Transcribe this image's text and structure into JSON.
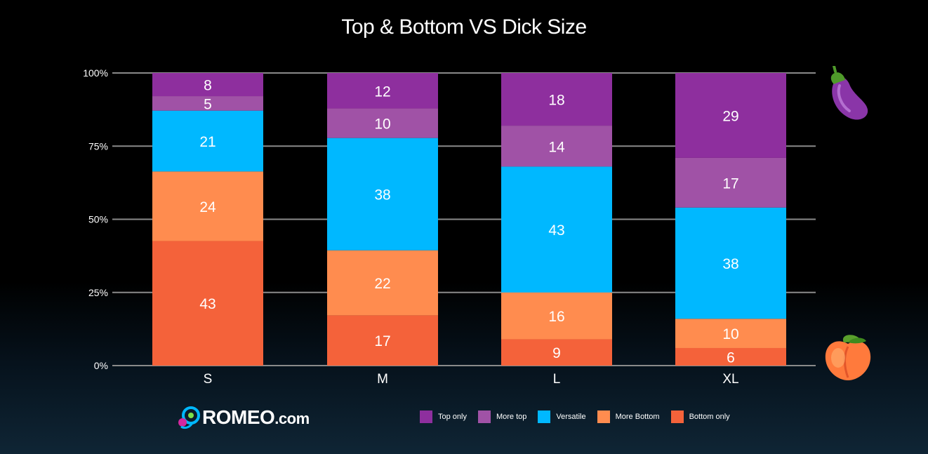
{
  "title": "Top & Bottom VS Dick Size",
  "logo": {
    "brand": "ROMEO",
    "suffix": ".com"
  },
  "colors": {
    "top_only": "#8e2f9e",
    "more_top": "#a052a6",
    "versatile": "#00b8ff",
    "more_bottom": "#ff8c4f",
    "bottom_only": "#f4623a"
  },
  "chart_data": {
    "type": "bar",
    "stacked": true,
    "normalized": "percent",
    "title": "Top & Bottom VS Dick Size",
    "categories": [
      "S",
      "M",
      "L",
      "XL"
    ],
    "ylim": [
      0,
      100
    ],
    "yticks": [
      "0%",
      "25%",
      "50%",
      "75%",
      "100%"
    ],
    "grid": true,
    "legend_position": "bottom",
    "series": [
      {
        "name": "Bottom only",
        "key": "bottom_only",
        "values": [
          43,
          17,
          9,
          6
        ]
      },
      {
        "name": "More Bottom",
        "key": "more_bottom",
        "values": [
          24,
          22,
          16,
          10
        ]
      },
      {
        "name": "Versatile",
        "key": "versatile",
        "values": [
          21,
          38,
          43,
          38
        ]
      },
      {
        "name": "More top",
        "key": "more_top",
        "values": [
          5,
          10,
          14,
          17
        ]
      },
      {
        "name": "Top only",
        "key": "top_only",
        "values": [
          8,
          12,
          18,
          29
        ]
      }
    ]
  },
  "legend": [
    {
      "label": "Top only",
      "key": "top_only"
    },
    {
      "label": "More top",
      "key": "more_top"
    },
    {
      "label": "Versatile",
      "key": "versatile"
    },
    {
      "label": "More Bottom",
      "key": "more_bottom"
    },
    {
      "label": "Bottom only",
      "key": "bottom_only"
    }
  ],
  "icons": {
    "top": "eggplant-icon",
    "bottom": "peach-icon"
  }
}
